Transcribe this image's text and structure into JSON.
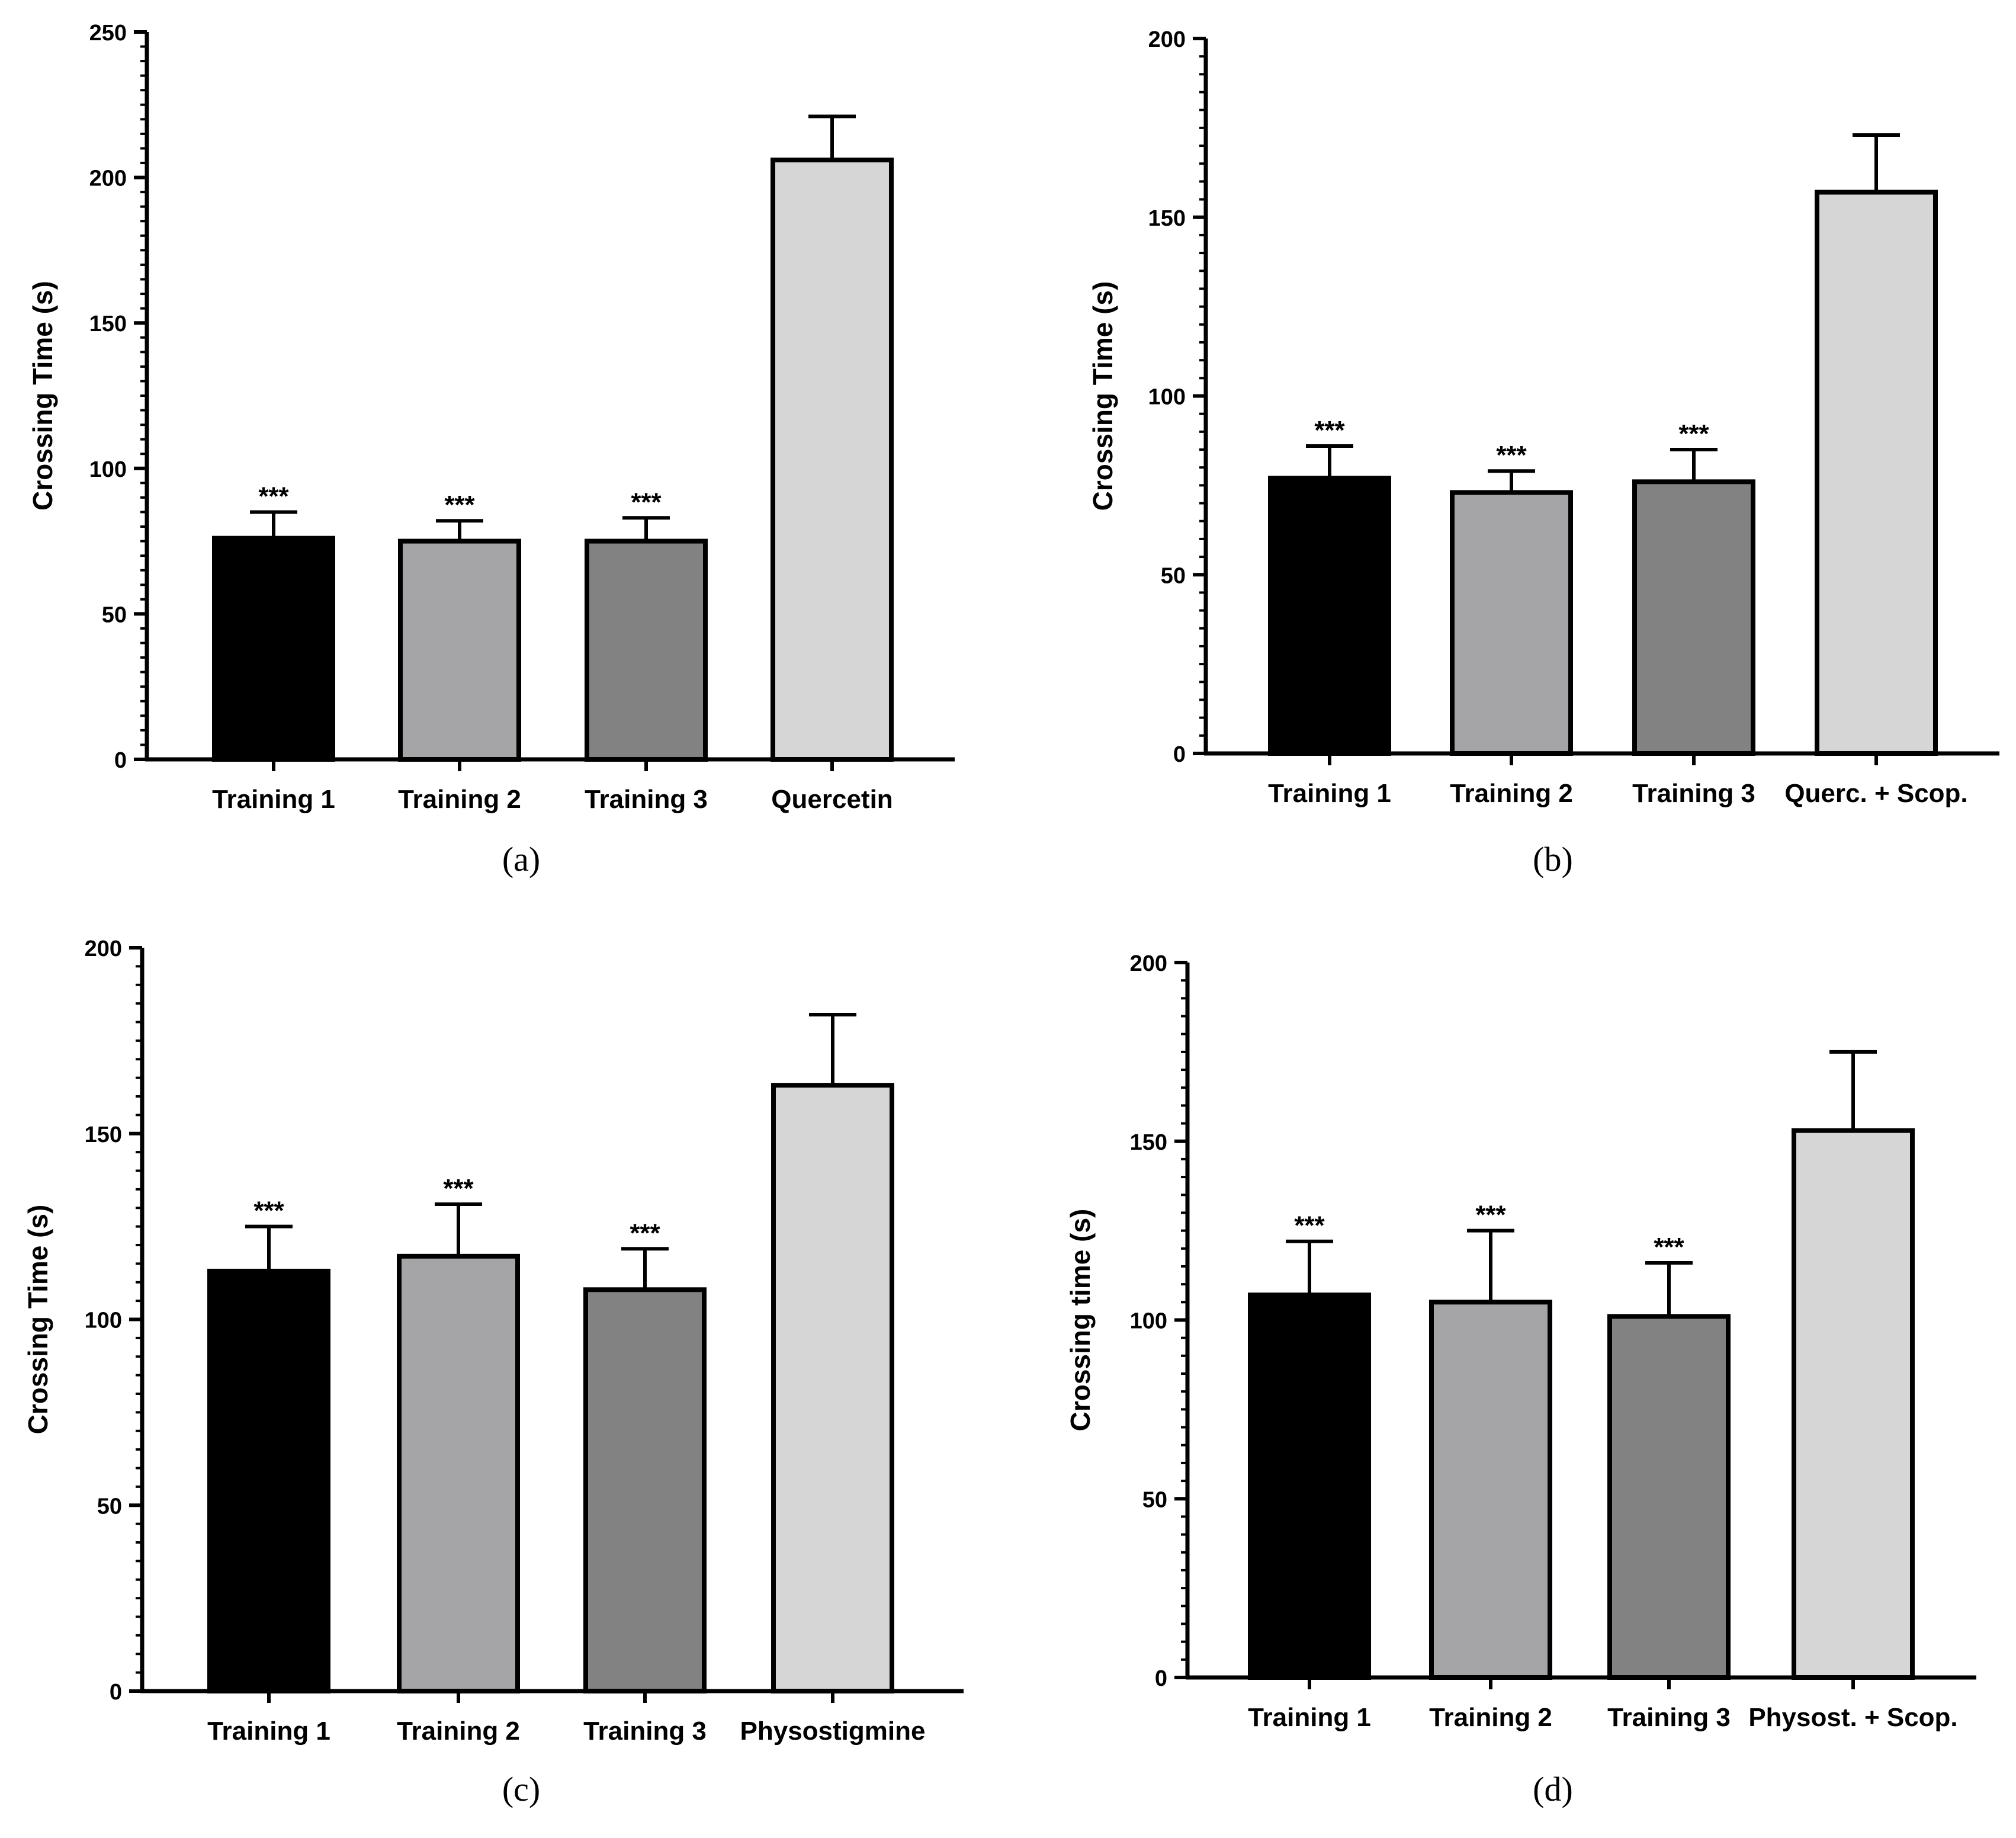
{
  "chart_data": [
    {
      "type": "bar",
      "panel_label": "(a)",
      "ylabel": "Crossing Time (s)",
      "ylim": [
        0,
        250
      ],
      "yticks": [
        0,
        50,
        100,
        150,
        200,
        250
      ],
      "categories": [
        "Training 1",
        "Training 2",
        "Training 3",
        "Quercetin"
      ],
      "values": [
        76,
        75,
        75,
        206
      ],
      "errors": [
        9,
        7,
        8,
        15
      ],
      "significance": [
        "***",
        "***",
        "***",
        ""
      ],
      "colors": [
        "#000000",
        "#a5a5a8",
        "#828282",
        "#d6d6d6"
      ]
    },
    {
      "type": "bar",
      "panel_label": "(b)",
      "ylabel": "Crossing Time (s)",
      "ylim": [
        0,
        200
      ],
      "yticks": [
        0,
        50,
        100,
        150,
        200
      ],
      "categories": [
        "Training 1",
        "Training 2",
        "Training 3",
        "Querc. + Scop."
      ],
      "values": [
        77,
        73,
        76,
        157
      ],
      "errors": [
        9,
        6,
        9,
        16
      ],
      "significance": [
        "***",
        "***",
        "***",
        ""
      ],
      "colors": [
        "#000000",
        "#a5a5a8",
        "#828282",
        "#d6d6d6"
      ]
    },
    {
      "type": "bar",
      "panel_label": "(c)",
      "ylabel": "Crossing Time (s)",
      "ylim": [
        0,
        200
      ],
      "yticks": [
        0,
        50,
        100,
        150,
        200
      ],
      "categories": [
        "Training 1",
        "Training 2",
        "Training 3",
        "Physostigmine"
      ],
      "values": [
        113,
        117,
        108,
        163
      ],
      "errors": [
        12,
        14,
        11,
        19
      ],
      "significance": [
        "***",
        "***",
        "***",
        ""
      ],
      "colors": [
        "#000000",
        "#a5a5a8",
        "#828282",
        "#d6d6d6"
      ]
    },
    {
      "type": "bar",
      "panel_label": "(d)",
      "ylabel": "Crossing time (s)",
      "ylim": [
        0,
        200
      ],
      "yticks": [
        0,
        50,
        100,
        150,
        200
      ],
      "categories": [
        "Training 1",
        "Training 2",
        "Training 3",
        "Physost. + Scop."
      ],
      "values": [
        107,
        105,
        101,
        153
      ],
      "errors": [
        15,
        20,
        15,
        22
      ],
      "significance": [
        "***",
        "***",
        "***",
        ""
      ],
      "colors": [
        "#000000",
        "#a5a5a8",
        "#828282",
        "#d6d6d6"
      ]
    }
  ]
}
